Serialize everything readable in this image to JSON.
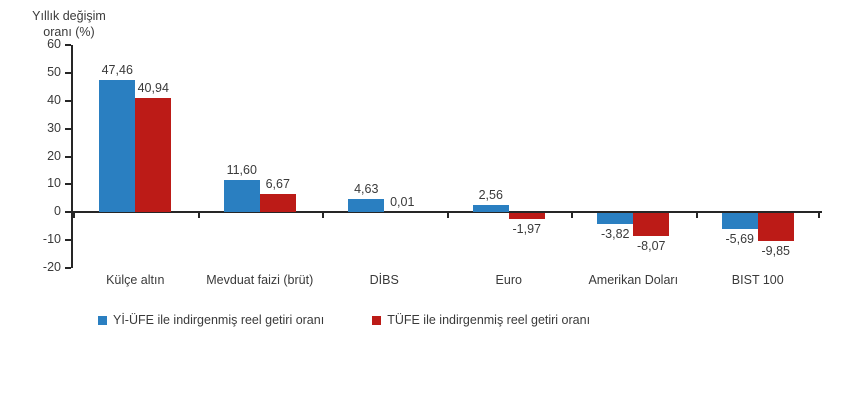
{
  "chart_data": {
    "type": "bar",
    "title": "Yıllık değişim\noranı (%)",
    "categories": [
      "Külçe altın",
      "Mevduat faizi (brüt)",
      "DİBS",
      "Euro",
      "Amerikan Doları",
      "BIST 100"
    ],
    "series": [
      {
        "name": "Yİ-ÜFE ile indirgenmiş reel getiri oranı",
        "color": "#2A7FC1",
        "values": [
          47.46,
          11.6,
          4.63,
          2.56,
          -3.82,
          -5.69
        ],
        "labels": [
          "47,46",
          "11,60",
          "4,63",
          "2,56",
          "-3,82",
          "-5,69"
        ]
      },
      {
        "name": "TÜFE ile indirgenmiş reel getiri oranı",
        "color": "#BC1B17",
        "values": [
          40.94,
          6.67,
          0.01,
          -1.97,
          -8.07,
          -9.85
        ],
        "labels": [
          "40,94",
          "6,67",
          "0,01",
          "-1,97",
          "-8,07",
          "-9,85"
        ]
      }
    ],
    "y_axis": {
      "min": -20,
      "max": 60,
      "step": 10,
      "tick_labels": [
        "60",
        "50",
        "40",
        "30",
        "20",
        "10",
        "0",
        "-10",
        "-20"
      ]
    },
    "legend_position": "bottom",
    "axis_color": "#262626",
    "text_color": "#3a3a3a"
  }
}
